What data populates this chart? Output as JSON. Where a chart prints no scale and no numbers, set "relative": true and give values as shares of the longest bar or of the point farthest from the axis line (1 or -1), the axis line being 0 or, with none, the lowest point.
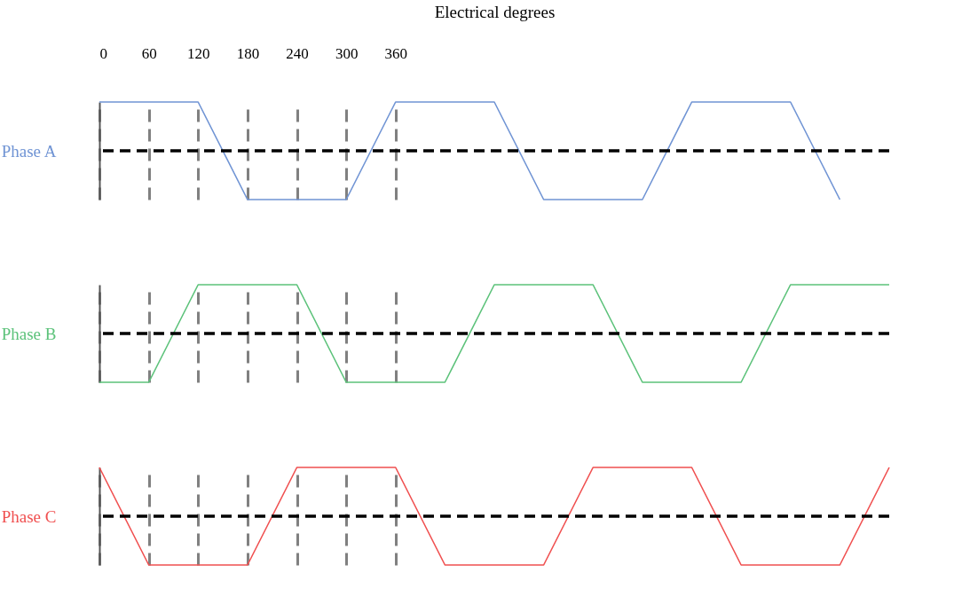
{
  "chart_data": [
    {
      "type": "line",
      "relative": true,
      "xlabel": "Electrical degrees",
      "xlim": [
        0,
        960
      ],
      "xticks": [
        0,
        60,
        120,
        180,
        240,
        300,
        360
      ],
      "grid": "x",
      "tick_labels": "x",
      "x": [
        0,
        120,
        180,
        300,
        360,
        480,
        540,
        660,
        720,
        840,
        900
      ],
      "series": [
        {
          "name": "Phase A",
          "color": "#7094d4",
          "values": [
            1,
            1,
            -1,
            -1,
            1,
            1,
            -1,
            -1,
            1,
            1,
            -1
          ]
        }
      ],
      "ref_lines": [
        {
          "axis": "y",
          "value": 0,
          "line_style": "dashed",
          "color": "#000000"
        }
      ]
    },
    {
      "type": "line",
      "relative": true,
      "xlim": [
        0,
        960
      ],
      "xticks": [
        0,
        60,
        120,
        180,
        240,
        300,
        360
      ],
      "grid": "x",
      "tick_labels": false,
      "x": [
        0,
        60,
        120,
        240,
        300,
        420,
        480,
        600,
        660,
        780,
        840,
        960
      ],
      "series": [
        {
          "name": "Phase B",
          "color": "#5cc27a",
          "values": [
            -1,
            -1,
            1,
            1,
            -1,
            -1,
            1,
            1,
            -1,
            -1,
            1,
            1
          ]
        }
      ],
      "ref_lines": [
        {
          "axis": "y",
          "value": 0,
          "line_style": "dashed",
          "color": "#000000"
        }
      ]
    },
    {
      "type": "line",
      "relative": true,
      "xlim": [
        0,
        960
      ],
      "xticks": [
        0,
        60,
        120,
        180,
        240,
        300,
        360
      ],
      "grid": "x",
      "tick_labels": false,
      "x": [
        0,
        60,
        180,
        240,
        360,
        420,
        540,
        600,
        720,
        780,
        900,
        960
      ],
      "series": [
        {
          "name": "Phase C",
          "color": "#f05050",
          "values": [
            1,
            -1,
            -1,
            1,
            1,
            -1,
            -1,
            1,
            1,
            -1,
            -1,
            1
          ]
        }
      ],
      "ref_lines": [
        {
          "axis": "y",
          "value": 0,
          "line_style": "dashed",
          "color": "#000000"
        }
      ]
    }
  ]
}
